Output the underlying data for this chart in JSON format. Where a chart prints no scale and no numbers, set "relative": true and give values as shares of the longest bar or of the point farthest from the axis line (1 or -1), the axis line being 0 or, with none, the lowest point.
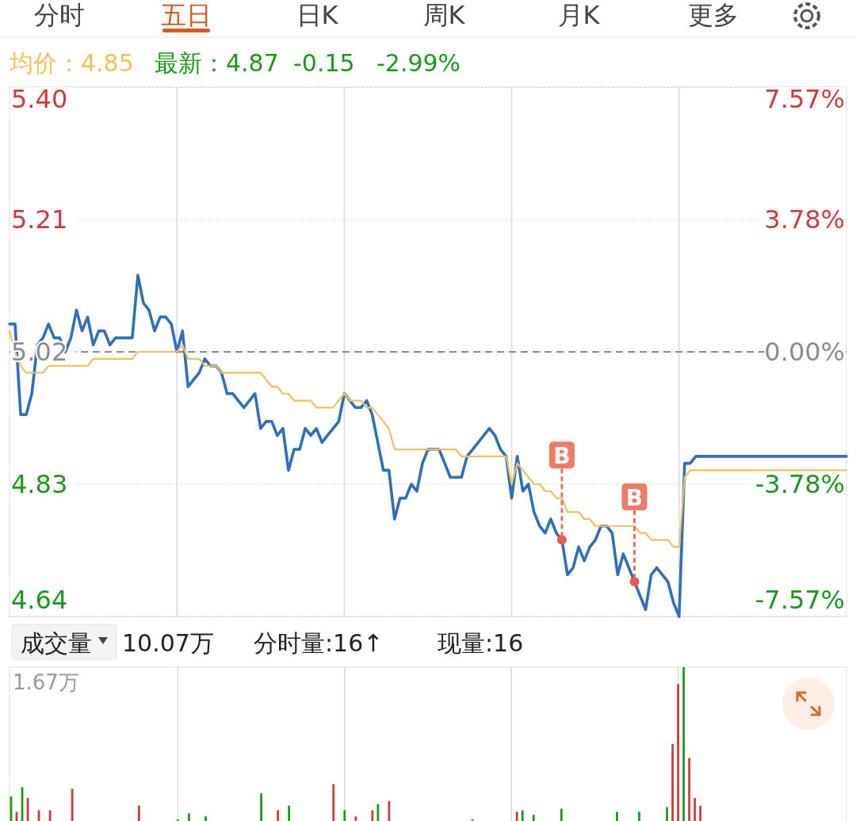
{
  "chart_data": [
    {
      "type": "line",
      "categories": [
        null,
        null,
        null,
        null,
        null,
        null,
        null,
        null,
        null,
        null,
        null,
        null,
        null,
        null,
        null,
        null,
        null,
        null,
        null,
        null,
        null,
        null,
        null,
        null,
        null,
        null,
        null,
        null,
        null,
        null,
        null,
        null,
        null,
        null,
        null,
        null,
        null,
        null,
        null,
        null,
        null,
        null,
        null,
        null,
        null,
        null,
        null,
        null,
        null,
        null,
        null,
        null,
        null,
        null,
        null,
        null,
        null,
        null,
        null,
        null,
        null,
        null,
        null,
        null,
        null,
        null,
        null,
        null,
        null,
        null,
        null,
        null,
        null,
        null,
        null,
        null,
        null,
        null,
        null,
        null,
        null,
        null,
        null,
        null,
        null,
        null,
        null,
        null,
        null,
        null,
        null,
        null,
        null,
        null,
        null,
        null,
        null,
        null,
        null,
        null,
        null,
        null,
        null,
        null,
        null,
        null,
        null,
        null,
        null,
        null,
        null,
        null,
        null,
        null,
        null,
        null,
        null,
        null,
        null,
        null,
        null,
        null,
        null,
        null,
        null,
        null,
        null,
        null,
        null,
        null,
        null,
        null,
        null,
        null,
        null,
        null,
        null,
        null,
        null,
        null,
        null,
        null,
        null,
        null,
        null,
        null,
        null,
        null,
        null,
        null,
        null
      ],
      "ylim": [
        4.64,
        5.4
      ],
      "yticks": [
        {
          "value": 4.64,
          "label": "4.64"
        },
        {
          "value": 4.83,
          "label": "4.83"
        },
        {
          "value": 5.02,
          "label": "5.02"
        },
        {
          "value": 5.21,
          "label": "5.21"
        },
        {
          "value": 5.4,
          "label": "5.40"
        }
      ],
      "y2lim": [
        -7.57,
        7.57
      ],
      "y2ticks": [
        {
          "value": -7.57,
          "label": "-7.57%"
        },
        {
          "value": -3.78,
          "label": "-3.78%"
        },
        {
          "value": 0,
          "label": "0.00%"
        },
        {
          "value": 3.78,
          "label": "3.78%"
        },
        {
          "value": 7.57,
          "label": "7.57%"
        }
      ],
      "tick_labels": "y",
      "grid": true,
      "ref_lines": [
        {
          "axis": "y",
          "value": 5.02,
          "color": "#8c8c8c",
          "line_style": "dashed"
        }
      ],
      "series": [
        {
          "color": "#2f6fbd",
          "values": [
            5.06,
            5.06,
            4.93,
            4.93,
            4.96,
            5.03,
            5.04,
            5.06,
            5.04,
            5.04,
            5.02,
            5.04,
            5.08,
            5.05,
            5.07,
            5.03,
            5.05,
            5.05,
            5.03,
            5.04,
            5.04,
            5.04,
            5.04,
            5.13,
            5.09,
            5.08,
            5.05,
            5.07,
            5.07,
            5.06,
            5.02,
            5.05,
            4.97,
            4.98,
            4.99,
            5.01,
            5,
            5,
            4.99,
            4.96,
            4.96,
            4.95,
            4.94,
            4.95,
            4.96,
            4.91,
            4.92,
            4.92,
            4.9,
            4.91,
            4.85,
            4.88,
            4.88,
            4.91,
            4.9,
            4.91,
            4.89,
            4.9,
            4.91,
            4.92,
            4.96,
            4.95,
            4.94,
            4.94,
            4.95,
            4.93,
            4.89,
            4.85,
            4.85,
            4.78,
            4.81,
            4.81,
            4.83,
            4.82,
            4.86,
            4.88,
            4.88,
            4.88,
            4.86,
            4.84,
            4.84,
            4.84,
            4.87,
            4.88,
            4.89,
            4.9,
            4.91,
            4.9,
            4.88,
            4.87,
            4.81,
            4.87,
            4.82,
            4.83,
            4.79,
            4.77,
            4.76,
            4.78,
            4.76,
            4.75,
            4.7,
            4.71,
            4.74,
            4.72,
            4.74,
            4.75,
            4.77,
            4.77,
            4.76,
            4.7,
            4.73,
            4.71,
            4.69,
            4.67,
            4.65,
            4.7,
            4.71,
            4.7,
            4.69,
            4.66,
            4.64,
            4.86,
            4.86,
            4.87,
            4.87,
            4.87,
            4.87,
            4.87,
            4.87,
            4.87,
            4.87,
            4.87,
            4.87,
            4.87,
            4.87,
            4.87,
            4.87,
            4.87,
            4.87,
            4.87,
            4.87,
            4.87,
            4.87,
            4.87,
            4.87,
            4.87,
            4.87,
            4.87,
            4.87,
            4.87,
            4.87
          ]
        },
        {
          "color": "#f1c15a",
          "values": [
            5.05,
            5.02,
            5,
            4.99,
            4.99,
            4.99,
            4.99,
            5,
            5,
            5,
            5,
            5,
            5,
            5,
            5,
            5.01,
            5.01,
            5.01,
            5.01,
            5.01,
            5.01,
            5.01,
            5.01,
            5.02,
            5.02,
            5.02,
            5.02,
            5.02,
            5.02,
            5.02,
            5.02,
            5.03,
            5.01,
            5.01,
            5.01,
            5,
            5,
            5,
            4.99,
            4.99,
            4.99,
            4.99,
            4.99,
            4.99,
            4.99,
            4.99,
            4.98,
            4.97,
            4.97,
            4.96,
            4.96,
            4.95,
            4.95,
            4.95,
            4.95,
            4.94,
            4.94,
            4.94,
            4.94,
            4.95,
            4.96,
            4.95,
            4.95,
            4.95,
            4.94,
            4.94,
            4.93,
            4.92,
            4.91,
            4.88,
            4.88,
            4.88,
            4.88,
            4.88,
            4.88,
            4.88,
            4.88,
            4.88,
            4.88,
            4.88,
            4.88,
            4.87,
            4.87,
            4.87,
            4.87,
            4.87,
            4.87,
            4.87,
            4.87,
            4.87,
            4.83,
            4.86,
            4.85,
            4.84,
            4.83,
            4.83,
            4.82,
            4.82,
            4.81,
            4.81,
            4.79,
            4.79,
            4.79,
            4.78,
            4.78,
            4.77,
            4.77,
            4.77,
            4.77,
            4.77,
            4.77,
            4.77,
            4.77,
            4.76,
            4.76,
            4.75,
            4.75,
            4.75,
            4.75,
            4.74,
            4.74,
            4.84,
            4.85,
            4.85,
            4.85,
            4.85,
            4.85,
            4.85,
            4.85,
            4.85,
            4.85,
            4.85,
            4.85,
            4.85,
            4.85,
            4.85,
            4.85,
            4.85,
            4.85,
            4.85,
            4.85,
            4.85,
            4.85,
            4.85,
            4.85,
            4.85,
            4.85,
            4.85,
            4.85,
            4.85,
            4.85
          ]
        }
      ],
      "annotations": [
        "分时",
        "五日",
        "日K",
        "周K",
        "月K",
        "更多",
        "均价：4.85",
        "最新：4.87",
        "-0.15",
        "-2.99%",
        {
          "text": "B",
          "y": 4.75
        },
        {
          "text": "B",
          "y": 4.69
        }
      ]
    },
    {
      "type": "bar",
      "relative": true,
      "categories": [
        null,
        null,
        null,
        null,
        null,
        null,
        null,
        null,
        null,
        null,
        null,
        null,
        null,
        null,
        null,
        null,
        null,
        null,
        null,
        null,
        null,
        null,
        null,
        null,
        null,
        null,
        null,
        null,
        null,
        null,
        null,
        null,
        null,
        null,
        null,
        null,
        null,
        null,
        null,
        null,
        null,
        null,
        null,
        null,
        null,
        null,
        null,
        null,
        null,
        null,
        null,
        null,
        null,
        null,
        null,
        null,
        null,
        null,
        null,
        null,
        null,
        null,
        null,
        null,
        null,
        null,
        null,
        null,
        null,
        null,
        null,
        null,
        null,
        null,
        null,
        null,
        null,
        null,
        null,
        null,
        null,
        null,
        null,
        null,
        null,
        null,
        null,
        null,
        null,
        null,
        null,
        null,
        null,
        null,
        null,
        null,
        null,
        null,
        null,
        null,
        null,
        null,
        null,
        null,
        null,
        null,
        null,
        null,
        null,
        null,
        null,
        null,
        null,
        null,
        null,
        null,
        null,
        null,
        null,
        null,
        null,
        null,
        null,
        null,
        null,
        null,
        null,
        null,
        null,
        null,
        null,
        null,
        null,
        null,
        null,
        null,
        null,
        null,
        null,
        null,
        null,
        null,
        null,
        null,
        null,
        null,
        null,
        null,
        null,
        null,
        null
      ],
      "tick_labels": false,
      "grid": "x",
      "values": [
        0.16,
        0.06,
        0.22,
        0.15,
        0,
        0.07,
        0,
        0.07,
        0,
        0,
        0,
        0.21,
        0,
        0,
        0,
        0,
        0,
        0,
        0,
        0,
        0,
        0,
        0,
        0.1,
        0,
        0,
        0,
        0,
        0,
        0,
        0.01,
        0,
        0.05,
        0,
        0,
        0.03,
        0,
        0,
        0,
        0,
        0,
        0,
        0,
        0,
        0,
        0.18,
        0,
        0,
        0.07,
        0,
        0.1,
        0,
        0,
        0,
        0,
        0,
        0,
        0,
        0.24,
        0,
        0.07,
        0,
        0.03,
        0,
        0,
        0.07,
        0.11,
        0,
        0.13,
        0,
        0,
        0,
        0,
        0,
        0,
        0,
        0,
        0,
        0,
        0,
        0,
        0,
        0,
        0.01,
        0,
        0,
        0,
        0,
        0,
        0,
        0,
        0.06,
        0.07,
        0,
        0.04,
        0,
        0,
        0,
        0,
        0.08,
        0,
        0,
        0,
        0,
        0,
        0,
        0,
        0,
        0,
        0.06,
        0,
        0,
        0,
        0.06,
        0,
        0,
        0,
        0,
        0.09,
        0.5,
        0.89,
        1,
        0.41,
        0.15,
        0.1,
        0,
        0,
        0,
        0,
        0,
        0,
        0,
        0,
        0,
        0,
        0,
        0,
        0,
        0,
        0,
        0,
        0,
        0,
        0,
        0,
        0,
        0,
        0,
        0,
        0,
        0
      ],
      "colors": [
        "#1a9a1a",
        "#d23a3a",
        "#1a9a1a",
        "#d23a3a",
        "#d23a3a",
        "#d23a3a",
        "#d23a3a",
        "#d23a3a",
        "#d23a3a",
        "#d23a3a",
        "#d23a3a",
        "#d23a3a",
        "#d23a3a",
        "#d23a3a",
        "#d23a3a",
        "#d23a3a",
        "#d23a3a",
        "#d23a3a",
        "#d23a3a",
        "#d23a3a",
        "#d23a3a",
        "#d23a3a",
        "#d23a3a",
        "#d23a3a",
        "#d23a3a",
        "#d23a3a",
        "#d23a3a",
        "#d23a3a",
        "#d23a3a",
        "#d23a3a",
        "#1a9a1a",
        "#d23a3a",
        "#1a9a1a",
        "#d23a3a",
        "#d23a3a",
        "#1a9a1a",
        "#d23a3a",
        "#d23a3a",
        "#d23a3a",
        "#d23a3a",
        "#d23a3a",
        "#d23a3a",
        "#d23a3a",
        "#d23a3a",
        "#d23a3a",
        "#1a9a1a",
        "#d23a3a",
        "#d23a3a",
        "#d23a3a",
        "#d23a3a",
        "#1a9a1a",
        "#d23a3a",
        "#d23a3a",
        "#d23a3a",
        "#d23a3a",
        "#d23a3a",
        "#d23a3a",
        "#d23a3a",
        "#d23a3a",
        "#d23a3a",
        "#1a9a1a",
        "#d23a3a",
        "#d23a3a",
        "#d23a3a",
        "#d23a3a",
        "#d23a3a",
        "#1a9a1a",
        "#d23a3a",
        "#d23a3a",
        "#d23a3a",
        "#d23a3a",
        "#d23a3a",
        "#d23a3a",
        "#d23a3a",
        "#d23a3a",
        "#d23a3a",
        "#d23a3a",
        "#d23a3a",
        "#d23a3a",
        "#d23a3a",
        "#d23a3a",
        "#d23a3a",
        "#d23a3a",
        "#d23a3a",
        "#d23a3a",
        "#d23a3a",
        "#d23a3a",
        "#d23a3a",
        "#d23a3a",
        "#d23a3a",
        "#d23a3a",
        "#d23a3a",
        "#1a9a1a",
        "#d23a3a",
        "#1a9a1a",
        "#d23a3a",
        "#d23a3a",
        "#d23a3a",
        "#d23a3a",
        "#1a9a1a",
        "#d23a3a",
        "#d23a3a",
        "#d23a3a",
        "#d23a3a",
        "#d23a3a",
        "#d23a3a",
        "#d23a3a",
        "#d23a3a",
        "#d23a3a",
        "#1a9a1a",
        "#d23a3a",
        "#d23a3a",
        "#d23a3a",
        "#1a9a1a",
        "#d23a3a",
        "#d23a3a",
        "#d23a3a",
        "#d23a3a",
        "#1a9a1a",
        "#d23a3a",
        "#d23a3a",
        "#1a9a1a",
        "#d23a3a",
        "#d23a3a",
        "#d23a3a",
        "#d23a3a",
        "#d23a3a",
        "#d23a3a",
        "#d23a3a",
        "#d23a3a",
        "#d23a3a",
        "#d23a3a",
        "#d23a3a",
        "#d23a3a",
        "#d23a3a",
        "#d23a3a",
        "#d23a3a",
        "#d23a3a",
        "#d23a3a",
        "#d23a3a",
        "#d23a3a",
        "#d23a3a",
        "#d23a3a",
        "#d23a3a",
        "#d23a3a",
        "#d23a3a",
        "#d23a3a",
        "#d23a3a",
        "#d23a3a",
        "#d23a3a",
        "#d23a3a"
      ],
      "annotations": [
        "成交量",
        "10.07万",
        "分时量:16↑",
        "现量:16",
        "1.67万"
      ]
    }
  ]
}
